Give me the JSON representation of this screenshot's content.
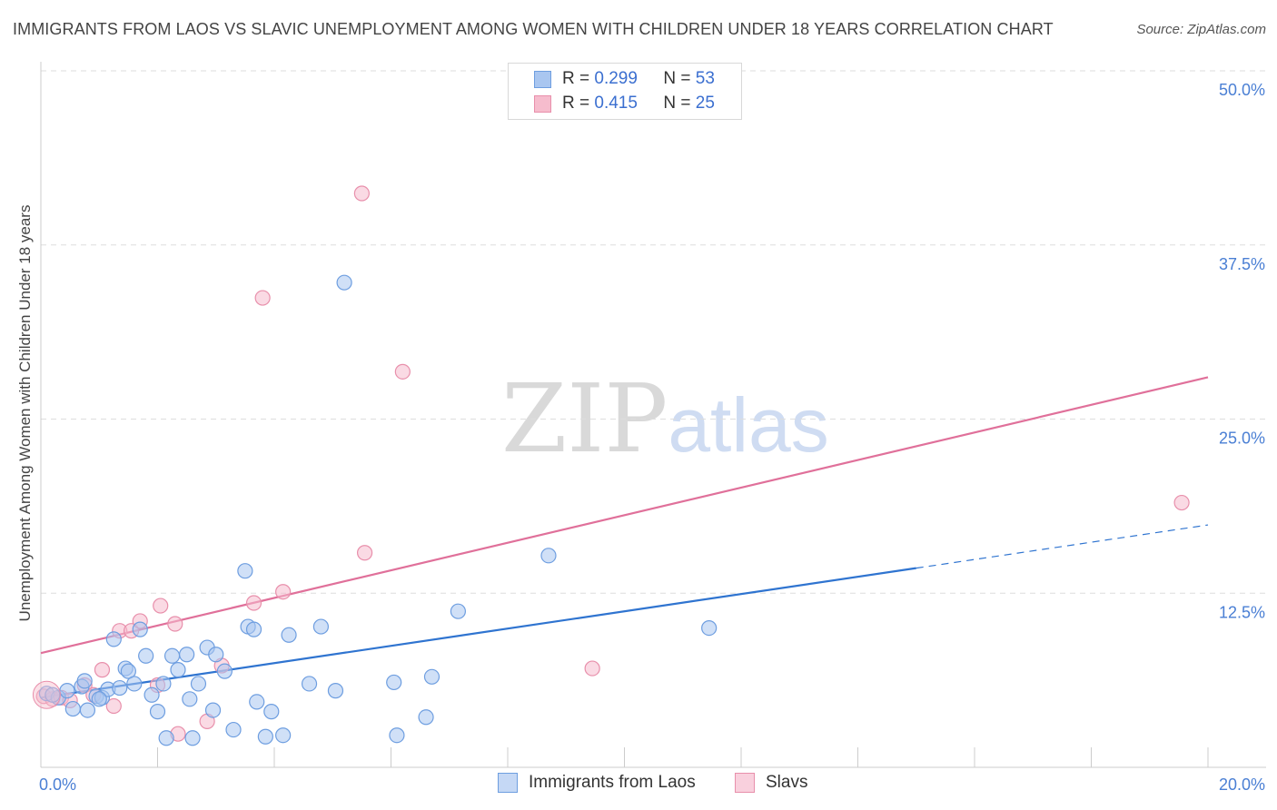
{
  "title": "IMMIGRANTS FROM LAOS VS SLAVIC UNEMPLOYMENT AMONG WOMEN WITH CHILDREN UNDER 18 YEARS CORRELATION CHART",
  "source": "Source: ZipAtlas.com",
  "watermark": {
    "part1": "ZIP",
    "part2": "atlas"
  },
  "legend": {
    "rows": [
      {
        "r_label": "R =",
        "r_value": "0.299",
        "n_label": "N =",
        "n_value": "53"
      },
      {
        "r_label": "R =",
        "r_value": "0.415",
        "n_label": "N =",
        "n_value": "25"
      }
    ]
  },
  "colors": {
    "laos_fill": "#a9c6f0",
    "laos_stroke": "#6e9ee0",
    "laos_line": "#2f74d0",
    "slavs_fill": "#f6bccd",
    "slavs_stroke": "#e88fab",
    "slavs_line": "#e0709a",
    "grid": "#dddddd",
    "tick_label": "#4a7fd4"
  },
  "chart_data": {
    "type": "scatter",
    "title": "IMMIGRANTS FROM LAOS VS SLAVIC UNEMPLOYMENT AMONG WOMEN WITH CHILDREN UNDER 18 YEARS CORRELATION CHART",
    "xlabel": "",
    "ylabel": "Unemployment Among Women with Children Under 18 years",
    "xlim": [
      0,
      20
    ],
    "ylim": [
      0,
      50
    ],
    "x_tick_labels": [
      {
        "value": 0,
        "label": "0.0%"
      },
      {
        "value": 20,
        "label": "20.0%"
      }
    ],
    "y_tick_labels": [
      {
        "value": 12.5,
        "label": "12.5%"
      },
      {
        "value": 25,
        "label": "25.0%"
      },
      {
        "value": 37.5,
        "label": "37.5%"
      },
      {
        "value": 50,
        "label": "50.0%"
      }
    ],
    "grid": true,
    "legend_position": "top-center",
    "series": [
      {
        "name": "Immigrants from Laos",
        "stats": {
          "r": 0.299,
          "n": 53
        },
        "trend": {
          "x0": 0,
          "y0": 5.0,
          "x1": 20,
          "y1": 17.4,
          "solid_until_x": 15.0
        },
        "points": [
          [
            0.1,
            5.3
          ],
          [
            0.3,
            5.0
          ],
          [
            0.45,
            5.5
          ],
          [
            0.55,
            4.2
          ],
          [
            0.7,
            5.8
          ],
          [
            0.75,
            6.2
          ],
          [
            0.8,
            4.1
          ],
          [
            0.95,
            5.1
          ],
          [
            1.05,
            5.0
          ],
          [
            1.15,
            5.6
          ],
          [
            1.25,
            9.2
          ],
          [
            1.35,
            5.7
          ],
          [
            1.45,
            7.1
          ],
          [
            1.5,
            6.9
          ],
          [
            1.6,
            6.0
          ],
          [
            1.7,
            9.9
          ],
          [
            1.8,
            8.0
          ],
          [
            1.9,
            5.2
          ],
          [
            2.0,
            4.0
          ],
          [
            2.1,
            6.0
          ],
          [
            2.15,
            2.1
          ],
          [
            2.25,
            8.0
          ],
          [
            2.35,
            7.0
          ],
          [
            2.5,
            8.1
          ],
          [
            2.55,
            4.9
          ],
          [
            2.6,
            2.1
          ],
          [
            2.7,
            6.0
          ],
          [
            2.85,
            8.6
          ],
          [
            2.95,
            4.1
          ],
          [
            3.0,
            8.1
          ],
          [
            3.15,
            6.9
          ],
          [
            3.3,
            2.7
          ],
          [
            3.5,
            14.1
          ],
          [
            3.55,
            10.1
          ],
          [
            3.65,
            9.9
          ],
          [
            3.7,
            4.7
          ],
          [
            3.85,
            2.2
          ],
          [
            3.95,
            4.0
          ],
          [
            4.15,
            2.3
          ],
          [
            4.25,
            9.5
          ],
          [
            4.6,
            6.0
          ],
          [
            4.8,
            10.1
          ],
          [
            5.05,
            5.5
          ],
          [
            5.2,
            34.8
          ],
          [
            6.05,
            6.1
          ],
          [
            6.1,
            2.3
          ],
          [
            6.6,
            3.6
          ],
          [
            6.7,
            6.5
          ],
          [
            7.15,
            11.2
          ],
          [
            8.7,
            15.2
          ],
          [
            11.45,
            10.0
          ],
          [
            0.2,
            5.2
          ],
          [
            1.0,
            4.9
          ]
        ]
      },
      {
        "name": "Slavs",
        "stats": {
          "r": 0.415,
          "n": 25
        },
        "trend": {
          "x0": 0,
          "y0": 8.2,
          "x1": 20,
          "y1": 28.0,
          "solid_until_x": 20
        },
        "points": [
          [
            0.05,
            5.1
          ],
          [
            0.2,
            4.9
          ],
          [
            0.35,
            5.0
          ],
          [
            0.5,
            4.8
          ],
          [
            0.75,
            5.9
          ],
          [
            0.9,
            5.2
          ],
          [
            1.05,
            7.0
          ],
          [
            1.25,
            4.4
          ],
          [
            1.35,
            9.8
          ],
          [
            1.55,
            9.8
          ],
          [
            1.7,
            10.5
          ],
          [
            2.0,
            5.9
          ],
          [
            2.05,
            11.6
          ],
          [
            2.3,
            10.3
          ],
          [
            2.35,
            2.4
          ],
          [
            2.85,
            3.3
          ],
          [
            3.1,
            7.3
          ],
          [
            3.65,
            11.8
          ],
          [
            3.8,
            33.7
          ],
          [
            4.15,
            12.6
          ],
          [
            5.5,
            41.2
          ],
          [
            5.55,
            15.4
          ],
          [
            6.2,
            28.4
          ],
          [
            9.45,
            7.1
          ],
          [
            19.55,
            19.0
          ]
        ]
      }
    ]
  },
  "bottom_legend": [
    {
      "label": "Immigrants from Laos"
    },
    {
      "label": "Slavs"
    }
  ]
}
